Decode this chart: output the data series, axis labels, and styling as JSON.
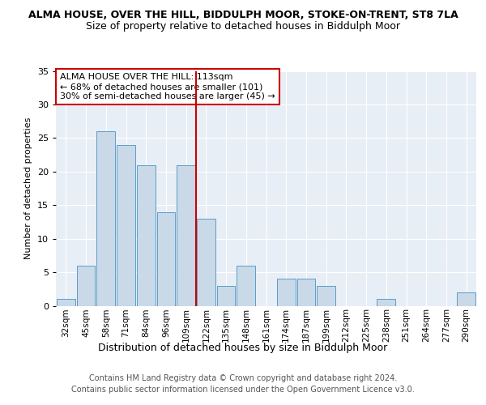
{
  "title": "ALMA HOUSE, OVER THE HILL, BIDDULPH MOOR, STOKE-ON-TRENT, ST8 7LA",
  "subtitle": "Size of property relative to detached houses in Biddulph Moor",
  "xlabel": "Distribution of detached houses by size in Biddulph Moor",
  "ylabel": "Number of detached properties",
  "categories": [
    "32sqm",
    "45sqm",
    "58sqm",
    "71sqm",
    "84sqm",
    "96sqm",
    "109sqm",
    "122sqm",
    "135sqm",
    "148sqm",
    "161sqm",
    "174sqm",
    "187sqm",
    "199sqm",
    "212sqm",
    "225sqm",
    "238sqm",
    "251sqm",
    "264sqm",
    "277sqm",
    "290sqm"
  ],
  "values": [
    1,
    6,
    26,
    24,
    21,
    14,
    21,
    13,
    3,
    6,
    0,
    4,
    4,
    3,
    0,
    0,
    1,
    0,
    0,
    0,
    2
  ],
  "bar_color": "#c9d9e8",
  "bar_edge_color": "#5a9ec9",
  "highlight_index": 6,
  "highlight_line_color": "#cc0000",
  "annotation_text": "ALMA HOUSE OVER THE HILL: 113sqm\n← 68% of detached houses are smaller (101)\n30% of semi-detached houses are larger (45) →",
  "annotation_box_color": "#ffffff",
  "annotation_box_edge": "#cc0000",
  "ylim": [
    0,
    35
  ],
  "yticks": [
    0,
    5,
    10,
    15,
    20,
    25,
    30,
    35
  ],
  "footer_line1": "Contains HM Land Registry data © Crown copyright and database right 2024.",
  "footer_line2": "Contains public sector information licensed under the Open Government Licence v3.0.",
  "plot_bg_color": "#e8eef5",
  "title_fontsize": 9,
  "subtitle_fontsize": 9
}
